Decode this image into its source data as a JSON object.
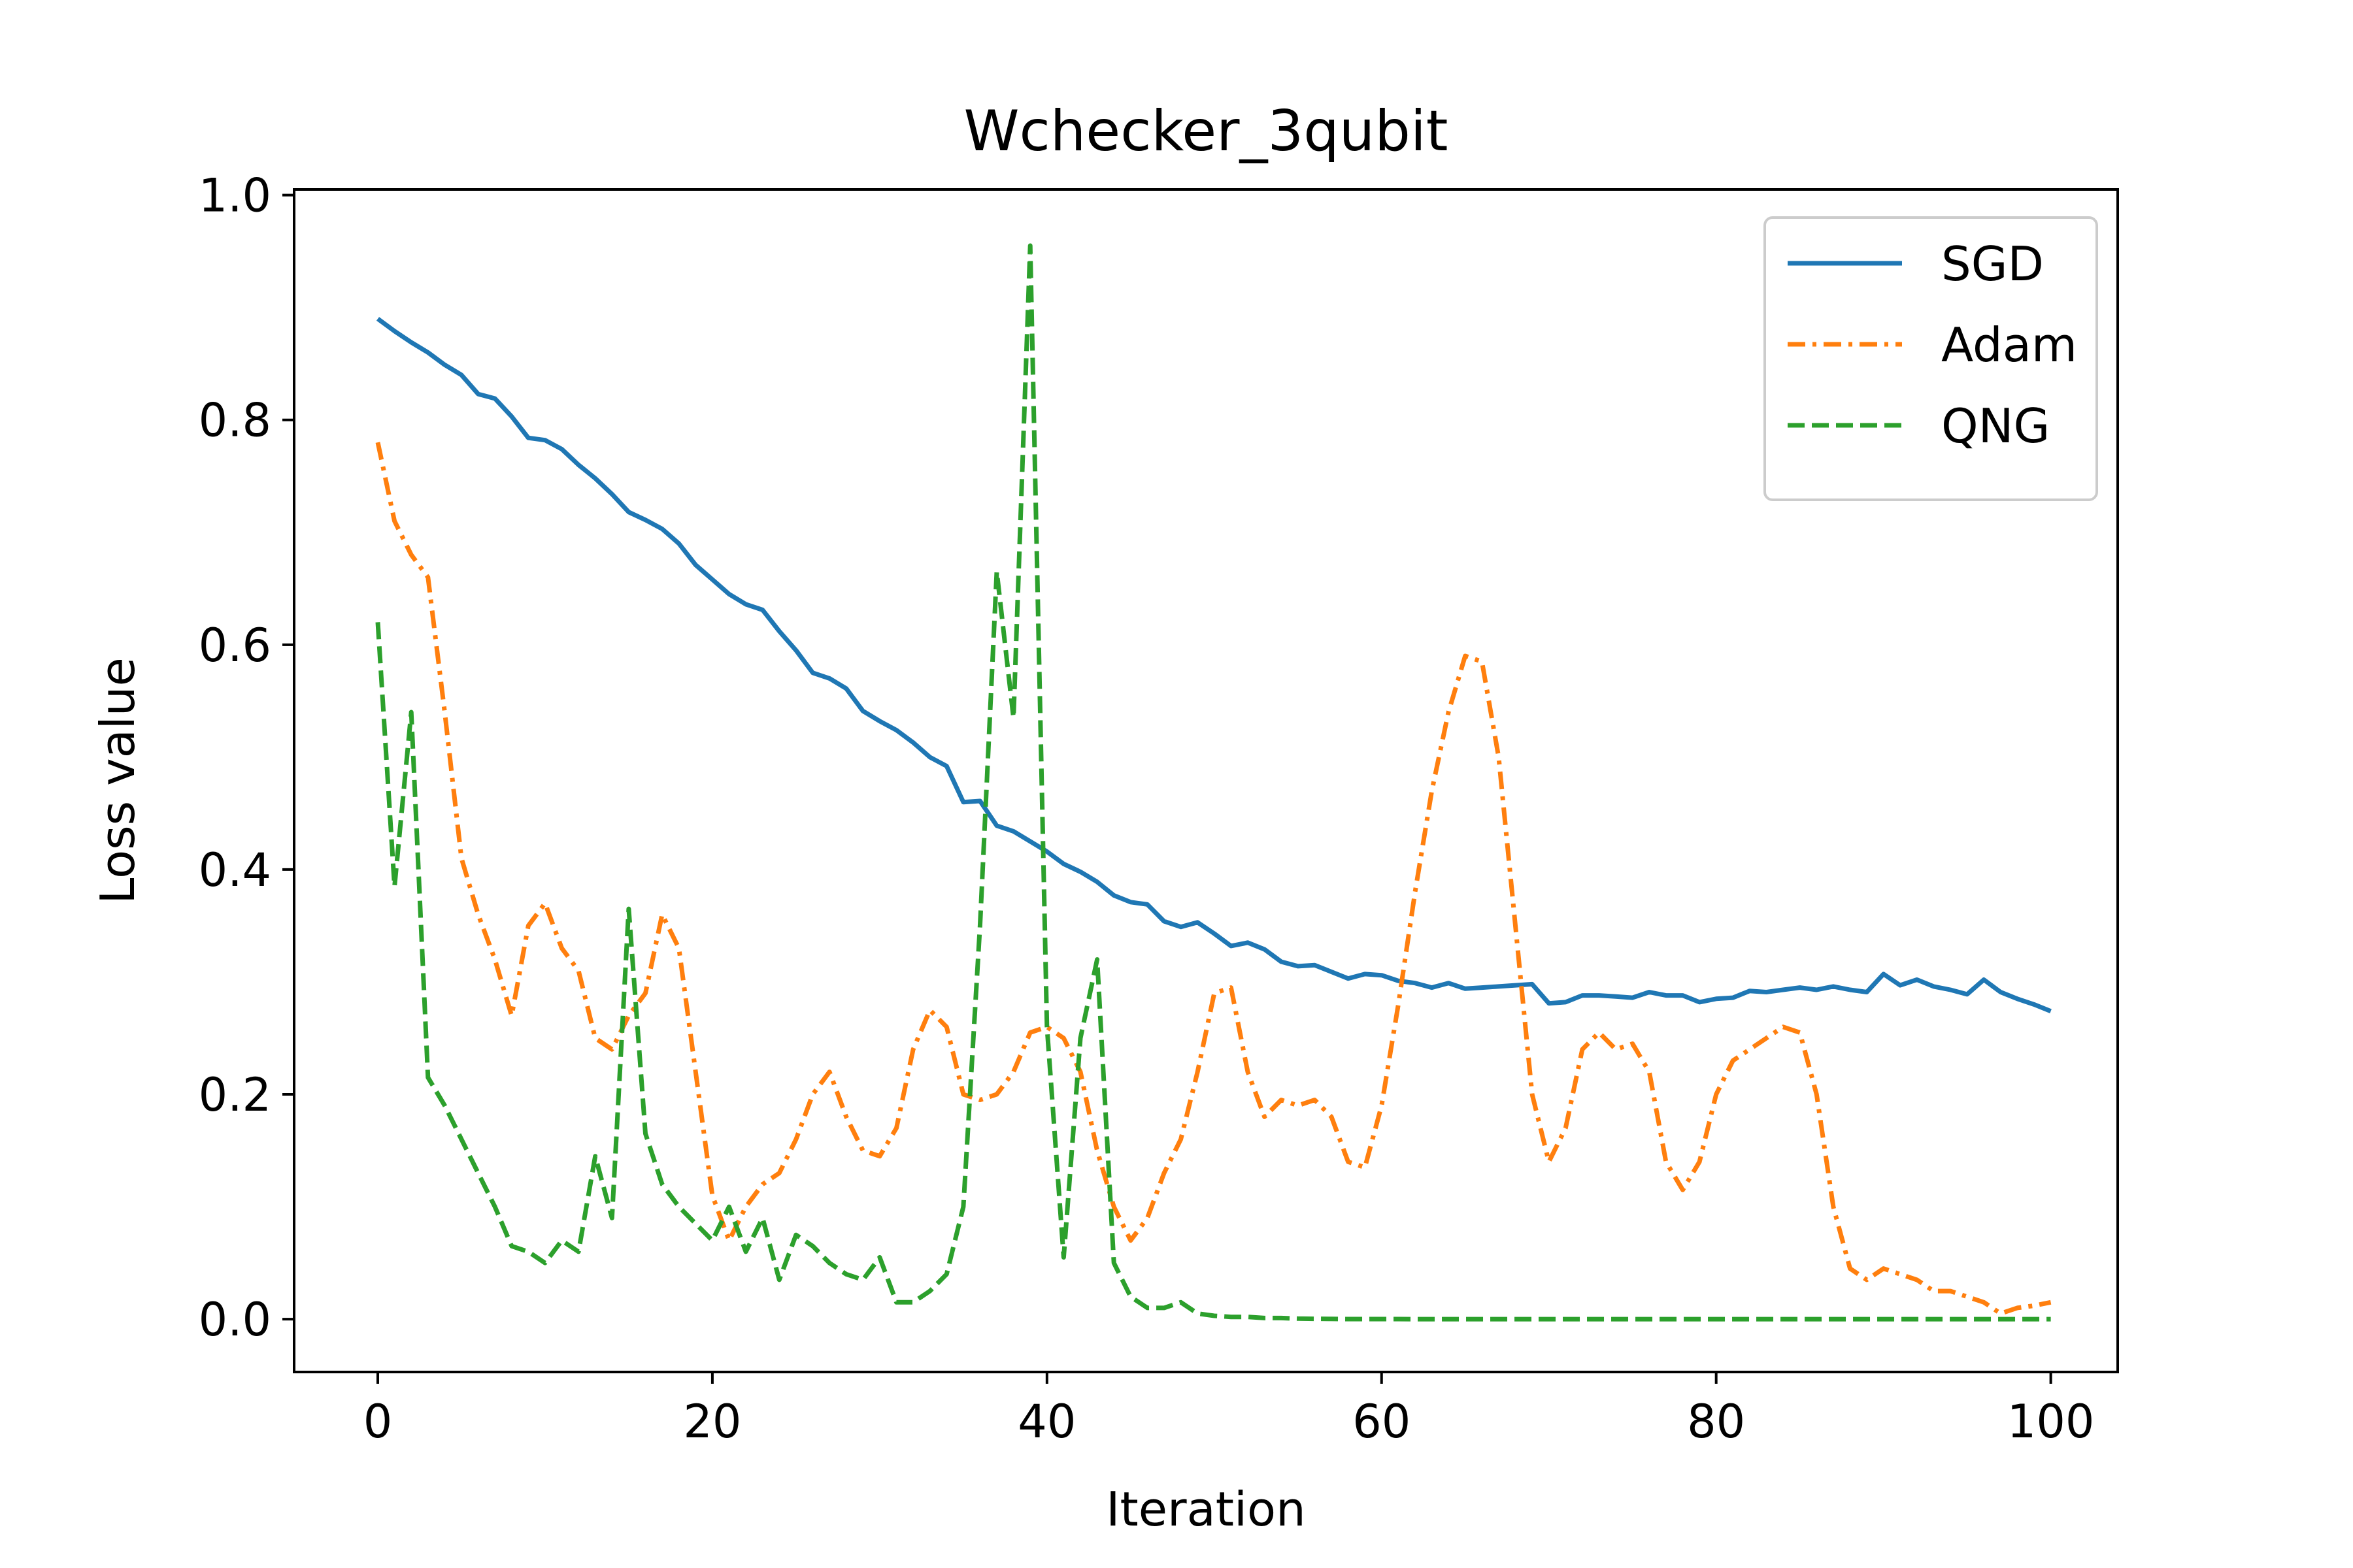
{
  "chart_data": {
    "type": "line",
    "title": "Wchecker_3qubit",
    "xlabel": "Iteration",
    "ylabel": "Loss value",
    "xlim": [
      -5,
      104
    ],
    "ylim": [
      -0.047,
      1.005
    ],
    "xticks": [
      0,
      20,
      40,
      60,
      80,
      100
    ],
    "yticks": [
      0.0,
      0.2,
      0.4,
      0.6,
      0.8,
      1.0
    ],
    "xtick_labels": [
      "0",
      "20",
      "40",
      "60",
      "80",
      "100"
    ],
    "ytick_labels": [
      "0.0",
      "0.2",
      "0.4",
      "0.6",
      "0.8",
      "1.0"
    ],
    "grid": false,
    "legend": {
      "position": "top-right"
    },
    "series": [
      {
        "name": "SGD",
        "color": "#1f77b4",
        "dash": "solid",
        "values": [
          0.89,
          0.879,
          0.869,
          0.86,
          0.849,
          0.84,
          0.823,
          0.819,
          0.803,
          0.784,
          0.782,
          0.774,
          0.76,
          0.748,
          0.734,
          0.718,
          0.711,
          0.703,
          0.69,
          0.671,
          0.658,
          0.645,
          0.636,
          0.631,
          0.612,
          0.595,
          0.575,
          0.57,
          0.561,
          0.541,
          0.532,
          0.524,
          0.513,
          0.5,
          0.492,
          0.46,
          0.461,
          0.439,
          0.434,
          0.425,
          0.416,
          0.405,
          0.398,
          0.389,
          0.377,
          0.371,
          0.369,
          0.354,
          0.349,
          0.353,
          0.343,
          0.332,
          0.335,
          0.329,
          0.318,
          0.314,
          0.315,
          0.309,
          0.303,
          0.307,
          0.306,
          0.301,
          0.299,
          0.295,
          0.299,
          0.294,
          0.295,
          0.296,
          0.297,
          0.298,
          0.281,
          0.282,
          0.288,
          0.288,
          0.287,
          0.286,
          0.291,
          0.288,
          0.288,
          0.282,
          0.285,
          0.286,
          0.292,
          0.291,
          0.293,
          0.295,
          0.293,
          0.296,
          0.293,
          0.291,
          0.307,
          0.297,
          0.302,
          0.296,
          0.293,
          0.289,
          0.302,
          0.291,
          0.285,
          0.28,
          0.274
        ]
      },
      {
        "name": "Adam",
        "color": "#ff7f0e",
        "dash": "dashdot",
        "values": [
          0.78,
          0.71,
          0.68,
          0.66,
          0.54,
          0.41,
          0.36,
          0.32,
          0.27,
          0.35,
          0.37,
          0.33,
          0.31,
          0.25,
          0.24,
          0.27,
          0.29,
          0.36,
          0.33,
          0.22,
          0.11,
          0.07,
          0.1,
          0.12,
          0.13,
          0.16,
          0.2,
          0.22,
          0.18,
          0.15,
          0.145,
          0.17,
          0.24,
          0.275,
          0.26,
          0.2,
          0.195,
          0.2,
          0.22,
          0.255,
          0.26,
          0.25,
          0.22,
          0.15,
          0.1,
          0.07,
          0.09,
          0.13,
          0.16,
          0.22,
          0.29,
          0.295,
          0.22,
          0.18,
          0.195,
          0.19,
          0.195,
          0.18,
          0.14,
          0.135,
          0.19,
          0.28,
          0.38,
          0.47,
          0.54,
          0.59,
          0.585,
          0.5,
          0.35,
          0.2,
          0.14,
          0.17,
          0.24,
          0.255,
          0.24,
          0.245,
          0.22,
          0.14,
          0.115,
          0.14,
          0.2,
          0.23,
          0.24,
          0.25,
          0.26,
          0.255,
          0.2,
          0.1,
          0.045,
          0.035,
          0.045,
          0.04,
          0.035,
          0.025,
          0.025,
          0.02,
          0.015,
          0.005,
          0.01,
          0.012,
          0.015
        ]
      },
      {
        "name": "QNG",
        "color": "#2ca02c",
        "dash": "dashed",
        "values": [
          0.62,
          0.385,
          0.54,
          0.215,
          0.19,
          0.16,
          0.13,
          0.1,
          0.065,
          0.06,
          0.05,
          0.07,
          0.06,
          0.145,
          0.09,
          0.365,
          0.165,
          0.12,
          0.1,
          0.085,
          0.07,
          0.1,
          0.06,
          0.09,
          0.035,
          0.075,
          0.065,
          0.05,
          0.04,
          0.035,
          0.055,
          0.015,
          0.015,
          0.025,
          0.04,
          0.1,
          0.35,
          0.665,
          0.535,
          0.955,
          0.26,
          0.055,
          0.25,
          0.32,
          0.05,
          0.02,
          0.01,
          0.01,
          0.015,
          0.005,
          0.003,
          0.002,
          0.002,
          0.001,
          0.001,
          0.0005,
          0.0003,
          0.0002,
          0.0001,
          0.0001,
          0.0001,
          0.0001,
          0.0,
          0.0,
          0.0,
          0.0,
          0.0,
          0.0,
          0.0,
          0.0,
          0.0,
          0.0,
          0.0,
          0.0,
          0.0,
          0.0,
          0.0,
          0.0,
          0.0,
          0.0,
          0.0,
          0.0,
          0.0,
          0.0,
          0.0,
          0.0,
          0.0,
          0.0,
          0.0,
          0.0,
          0.0,
          0.0,
          0.0,
          0.0,
          0.0,
          0.0,
          0.0,
          0.0,
          0.0,
          0.0,
          0.0
        ]
      }
    ]
  }
}
